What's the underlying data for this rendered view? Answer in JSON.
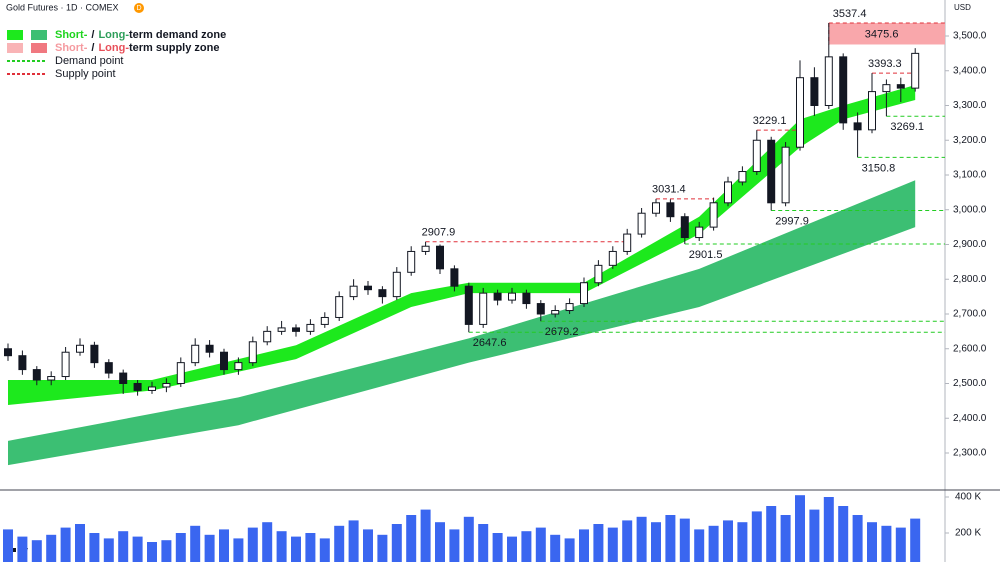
{
  "chart_data": {
    "type": "candlestick",
    "title": "Gold Futures · 1D · COMEX",
    "badge": "D",
    "currency": "USD",
    "ylim": [
      2193.5,
      3603.6
    ],
    "yticks": [
      {
        "value": 2300,
        "label": "2,300.0"
      },
      {
        "value": 2400,
        "label": "2,400.0"
      },
      {
        "value": 2500,
        "label": "2,500.0"
      },
      {
        "value": 2600,
        "label": "2,600.0"
      },
      {
        "value": 2700,
        "label": "2,700.0"
      },
      {
        "value": 2800,
        "label": "2,800.0"
      },
      {
        "value": 2900,
        "label": "2,900.0"
      },
      {
        "value": 3000,
        "label": "3,000.0"
      },
      {
        "value": 3100,
        "label": "3,100.0"
      },
      {
        "value": 3200,
        "label": "3,200.0"
      },
      {
        "value": 3300,
        "label": "3,300.0"
      },
      {
        "value": 3400,
        "label": "3,400.0"
      },
      {
        "value": 3500,
        "label": "3,500.0"
      }
    ],
    "candles": [
      [
        2600,
        2615,
        2565,
        2580
      ],
      [
        2580,
        2595,
        2525,
        2540
      ],
      [
        2540,
        2550,
        2495,
        2510
      ],
      [
        2510,
        2535,
        2495,
        2520
      ],
      [
        2520,
        2605,
        2510,
        2590
      ],
      [
        2590,
        2630,
        2580,
        2610
      ],
      [
        2610,
        2620,
        2545,
        2560
      ],
      [
        2560,
        2570,
        2515,
        2530
      ],
      [
        2530,
        2540,
        2470,
        2500
      ],
      [
        2500,
        2510,
        2465,
        2480
      ],
      [
        2480,
        2505,
        2470,
        2490
      ],
      [
        2490,
        2515,
        2475,
        2500
      ],
      [
        2500,
        2575,
        2490,
        2560
      ],
      [
        2560,
        2630,
        2550,
        2610
      ],
      [
        2610,
        2625,
        2575,
        2590
      ],
      [
        2590,
        2600,
        2525,
        2540
      ],
      [
        2540,
        2575,
        2525,
        2560
      ],
      [
        2560,
        2635,
        2550,
        2620
      ],
      [
        2620,
        2665,
        2610,
        2650
      ],
      [
        2650,
        2680,
        2640,
        2660
      ],
      [
        2660,
        2670,
        2635,
        2650
      ],
      [
        2650,
        2685,
        2640,
        2670
      ],
      [
        2670,
        2705,
        2660,
        2690
      ],
      [
        2690,
        2765,
        2680,
        2750
      ],
      [
        2750,
        2800,
        2740,
        2780
      ],
      [
        2780,
        2795,
        2755,
        2770
      ],
      [
        2770,
        2780,
        2730,
        2750
      ],
      [
        2750,
        2835,
        2740,
        2820
      ],
      [
        2820,
        2895,
        2810,
        2880
      ],
      [
        2880,
        2907.9,
        2870,
        2895
      ],
      [
        2895,
        2900,
        2815,
        2830
      ],
      [
        2830,
        2840,
        2765,
        2780
      ],
      [
        2780,
        2790,
        2647.6,
        2670
      ],
      [
        2670,
        2775,
        2660,
        2760
      ],
      [
        2760,
        2770,
        2725,
        2740
      ],
      [
        2740,
        2775,
        2730,
        2760
      ],
      [
        2760,
        2770,
        2715,
        2730
      ],
      [
        2730,
        2740,
        2679.2,
        2700
      ],
      [
        2700,
        2725,
        2690,
        2710
      ],
      [
        2710,
        2745,
        2700,
        2730
      ],
      [
        2730,
        2805,
        2720,
        2790
      ],
      [
        2790,
        2855,
        2780,
        2840
      ],
      [
        2840,
        2895,
        2830,
        2880
      ],
      [
        2880,
        2945,
        2870,
        2930
      ],
      [
        2930,
        3005,
        2920,
        2990
      ],
      [
        2990,
        3031.4,
        2980,
        3020
      ],
      [
        3020,
        3030,
        2965,
        2980
      ],
      [
        2980,
        2990,
        2901.5,
        2920
      ],
      [
        2920,
        2965,
        2910,
        2950
      ],
      [
        2950,
        3035,
        2940,
        3020
      ],
      [
        3020,
        3095,
        3010,
        3080
      ],
      [
        3080,
        3125,
        3070,
        3110
      ],
      [
        3110,
        3229.1,
        3100,
        3200
      ],
      [
        3200,
        3210,
        2997.9,
        3020
      ],
      [
        3020,
        3195,
        3010,
        3180
      ],
      [
        3180,
        3430,
        3170,
        3380
      ],
      [
        3380,
        3410,
        3270,
        3300
      ],
      [
        3300,
        3537.4,
        3290,
        3440
      ],
      [
        3440,
        3450,
        3230,
        3250
      ],
      [
        3250,
        3280,
        3150.8,
        3230
      ],
      [
        3230,
        3393.3,
        3220,
        3340
      ],
      [
        3340,
        3375,
        3269.1,
        3360
      ],
      [
        3360,
        3380,
        3310,
        3350
      ],
      [
        3350,
        3465,
        3340,
        3450
      ]
    ],
    "up_color": "#ffffff",
    "down_color": "#131722",
    "volume": [
      220000,
      180000,
      160000,
      190000,
      230000,
      250000,
      200000,
      170000,
      210000,
      180000,
      150000,
      160000,
      200000,
      240000,
      190000,
      220000,
      170000,
      230000,
      260000,
      210000,
      180000,
      200000,
      170000,
      240000,
      270000,
      220000,
      190000,
      250000,
      300000,
      330000,
      260000,
      220000,
      290000,
      250000,
      200000,
      180000,
      210000,
      230000,
      190000,
      170000,
      220000,
      250000,
      230000,
      270000,
      290000,
      260000,
      300000,
      280000,
      220000,
      240000,
      270000,
      260000,
      320000,
      350000,
      300000,
      410000,
      330000,
      400000,
      350000,
      300000,
      260000,
      240000,
      230000,
      280000
    ],
    "volume_color": "#3a66f0",
    "vlim": [
      38900,
      438900
    ],
    "vticks": [
      {
        "value": 200000,
        "label": "200 K"
      },
      {
        "value": 400000,
        "label": "400 K"
      }
    ],
    "long_term_zone": {
      "color": "#3cbf73",
      "x": [
        0,
        16,
        32,
        48,
        63
      ],
      "lower": [
        2265,
        2380,
        2560,
        2720,
        2950
      ],
      "upper": [
        2335,
        2460,
        2630,
        2830,
        3085
      ]
    },
    "short_term_zone": {
      "color": "#1de91d",
      "x": [
        0,
        10,
        20,
        28,
        32,
        40,
        48,
        55,
        58,
        63
      ],
      "lower": [
        2438,
        2480,
        2570,
        2720,
        2760,
        2760,
        2930,
        3180,
        3260,
        3316
      ],
      "upper": [
        2510,
        2510,
        2610,
        2760,
        2790,
        2790,
        2980,
        3260,
        3300,
        3359
      ]
    },
    "supply_zone": {
      "color": "#f9a7ab",
      "low": 3475.6,
      "high": 3537.4
    },
    "demand_points": {
      "color": "#22cc22",
      "values": [
        2647.6,
        2679.2,
        2901.5,
        2997.9,
        3150.8,
        3269.1
      ]
    },
    "supply_points": {
      "color": "#e0303a",
      "values": [
        2907.9,
        3031.4,
        3229.1,
        3393.3
      ]
    },
    "legend": [
      {
        "swatches": [
          "#1de91d",
          "#3cbf73"
        ],
        "parts": [
          "Short-",
          "/",
          "Long-",
          "term demand zone"
        ],
        "part_colors": [
          "#1ed41e",
          "#131722",
          "#2e9e5a",
          "#131722"
        ]
      },
      {
        "swatches": [
          "#f9b4b6",
          "#f07880"
        ],
        "parts": [
          "Short-",
          "/",
          "Long-",
          "term supply zone"
        ],
        "part_colors": [
          "#f59a9f",
          "#131722",
          "#e8505a",
          "#131722"
        ]
      },
      {
        "line": "#22cc22",
        "parts": [
          "Demand point"
        ],
        "part_colors": [
          "#131722"
        ]
      },
      {
        "line": "#e0303a",
        "parts": [
          "Supply point"
        ],
        "part_colors": [
          "#131722"
        ]
      }
    ]
  }
}
